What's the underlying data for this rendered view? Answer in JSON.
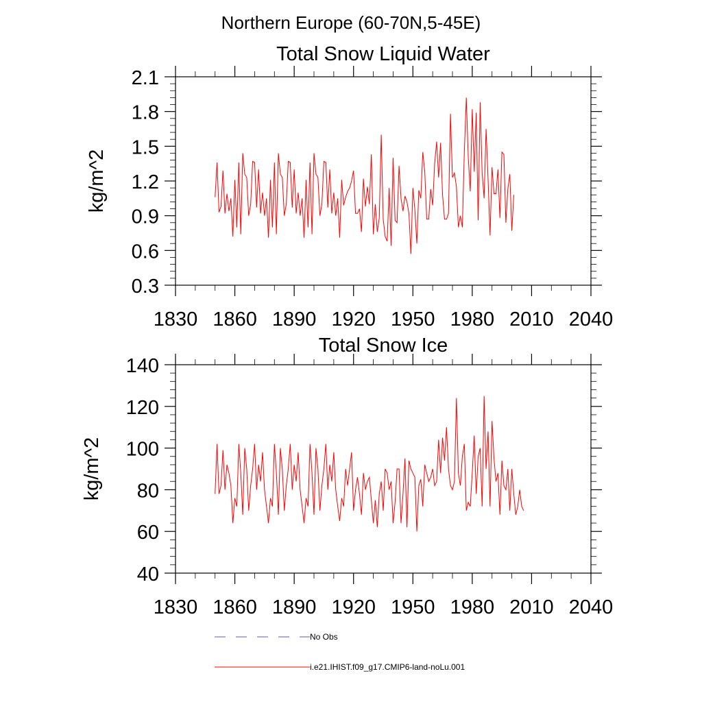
{
  "suptitle": "Northern Europe (60-70N,5-45E)",
  "legend": {
    "obs_label": "No Obs",
    "obs_color": "#5b5b9a",
    "model_label": "i.e21.IHIST.f09_g17.CMIP6-land-noLu.001",
    "model_color": "#ff0000"
  },
  "chart_data": [
    {
      "type": "line",
      "title": "Total Snow Liquid Water",
      "ylabel": "kg/m^2",
      "xlim": [
        1830,
        2040
      ],
      "ylim": [
        0.3,
        2.1
      ],
      "xticks": [
        1830,
        1860,
        1890,
        1920,
        1950,
        1980,
        2010,
        2040
      ],
      "xtick_labels": [
        "1830",
        "1860",
        "1890",
        "1920",
        "1950",
        "1980",
        "2010",
        "2040"
      ],
      "yticks": [
        0.3,
        0.6,
        0.9,
        1.2,
        1.5,
        1.8,
        2.1
      ],
      "ytick_labels": [
        "0.3",
        "0.6",
        "0.9",
        "1.2",
        "1.5",
        "1.8",
        "2.1"
      ],
      "x_start": 1850,
      "series": [
        {
          "name": "i.e21.IHIST.f09_g17.CMIP6-land-noLu.001",
          "color": "#ff0000",
          "values": [
            1.06,
            1.36,
            0.93,
            0.98,
            1.29,
            0.92,
            1.09,
            0.94,
            1.05,
            0.72,
            1.21,
            0.8,
            1.36,
            0.74,
            1.44,
            1.26,
            1.23,
            0.9,
            1.0,
            1.37,
            1.36,
            0.97,
            1.3,
            0.92,
            1.1,
            0.9,
            1.05,
            0.71,
            1.21,
            0.8,
            1.36,
            0.74,
            1.44,
            1.26,
            1.23,
            0.9,
            1.0,
            1.37,
            1.36,
            0.97,
            1.3,
            0.92,
            1.1,
            0.9,
            1.05,
            0.71,
            1.21,
            0.8,
            1.36,
            0.74,
            1.44,
            1.26,
            1.23,
            0.9,
            1.0,
            1.37,
            1.36,
            0.97,
            1.3,
            0.92,
            1.1,
            0.9,
            1.05,
            0.71,
            1.21,
            0.99,
            1.06,
            1.11,
            1.14,
            1.2,
            1.29,
            0.92,
            0.92,
            0.96,
            0.76,
            1.22,
            0.98,
            1.15,
            1.0,
            1.43,
            0.74,
            1.0,
            0.76,
            0.88,
            1.6,
            0.87,
            0.72,
            0.68,
            1.14,
            0.64,
            1.4,
            0.86,
            0.84,
            1.33,
            1.05,
            0.94,
            1.07,
            1.02,
            0.92,
            0.57,
            1.14,
            0.95,
            0.66,
            1.12,
            1.05,
            1.45,
            1.28,
            0.87,
            0.87,
            1.13,
            0.99,
            1.35,
            1.54,
            1.23,
            1.53,
            1.08,
            0.87,
            0.87,
            0.92,
            1.78,
            1.23,
            1.27,
            1.15,
            0.8,
            0.9,
            0.8,
            1.45,
            1.92,
            1.4,
            1.11,
            1.82,
            1.28,
            1.79,
            0.86,
            1.88,
            1.27,
            1.05,
            1.65,
            1.22,
            0.73,
            1.32,
            1.09,
            1.09,
            1.3,
            0.88,
            1.45,
            1.43,
            0.84,
            1.13,
            1.26,
            0.77,
            1.08
          ]
        }
      ]
    },
    {
      "type": "line",
      "title": "Total Snow Ice",
      "ylabel": "kg/m^2",
      "xlim": [
        1830,
        2040
      ],
      "ylim": [
        40,
        140
      ],
      "xticks": [
        1830,
        1860,
        1890,
        1920,
        1950,
        1980,
        2010,
        2040
      ],
      "xtick_labels": [
        "1830",
        "1860",
        "1890",
        "1920",
        "1950",
        "1980",
        "2010",
        "2040"
      ],
      "yticks": [
        40,
        60,
        80,
        100,
        120,
        140
      ],
      "ytick_labels": [
        "40",
        "60",
        "80",
        "100",
        "120",
        "140"
      ],
      "x_start": 1850,
      "series": [
        {
          "name": "i.e21.IHIST.f09_g17.CMIP6-land-noLu.001",
          "color": "#ff0000",
          "values": [
            78,
            102,
            78,
            82,
            99,
            80,
            92,
            88,
            82,
            64,
            76,
            72,
            102,
            88,
            68,
            100,
            90,
            70,
            82,
            90,
            102,
            80,
            92,
            84,
            98,
            80,
            72,
            64,
            76,
            72,
            102,
            88,
            68,
            100,
            90,
            70,
            82,
            90,
            102,
            80,
            92,
            84,
            98,
            80,
            72,
            64,
            76,
            72,
            102,
            88,
            68,
            100,
            90,
            70,
            82,
            90,
            102,
            80,
            92,
            84,
            98,
            80,
            72,
            65,
            76,
            72,
            90,
            82,
            90,
            98,
            70,
            80,
            86,
            78,
            68,
            88,
            80,
            84,
            86,
            75,
            64,
            75,
            62,
            78,
            84,
            70,
            90,
            88,
            80,
            84,
            64,
            74,
            90,
            90,
            64,
            78,
            95,
            62,
            94,
            90,
            88,
            86,
            60,
            82,
            85,
            72,
            92,
            88,
            84,
            86,
            90,
            82,
            84,
            104,
            88,
            105,
            94,
            110,
            90,
            82,
            80,
            84,
            124,
            88,
            82,
            96,
            102,
            70,
            74,
            72,
            88,
            106,
            78,
            96,
            100,
            72,
            125,
            90,
            108,
            72,
            113,
            95,
            84,
            88,
            68,
            94,
            82,
            80,
            90,
            70,
            90,
            78,
            68,
            72,
            80,
            72,
            70
          ]
        }
      ]
    }
  ]
}
